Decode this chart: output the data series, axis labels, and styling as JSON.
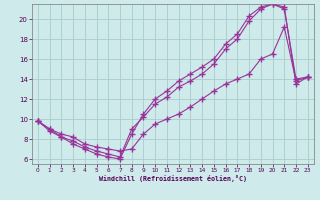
{
  "xlabel": "Windchill (Refroidissement éolien,°C)",
  "bg_color": "#ceeaea",
  "line_color": "#993399",
  "grid_color": "#aacccc",
  "xlim": [
    -0.5,
    23.5
  ],
  "ylim": [
    5.5,
    21.5
  ],
  "xticks": [
    0,
    1,
    2,
    3,
    4,
    5,
    6,
    7,
    8,
    9,
    10,
    11,
    12,
    13,
    14,
    15,
    16,
    17,
    18,
    19,
    20,
    21,
    22,
    23
  ],
  "yticks": [
    6,
    8,
    10,
    12,
    14,
    16,
    18,
    20
  ],
  "line1_x": [
    0,
    1,
    2,
    3,
    4,
    5,
    6,
    7,
    8,
    9,
    10,
    11,
    12,
    13,
    14,
    15,
    16,
    17,
    18,
    19,
    20,
    21,
    22,
    23
  ],
  "line1_y": [
    9.8,
    9.0,
    8.2,
    7.5,
    7.0,
    6.5,
    6.2,
    6.0,
    8.5,
    10.5,
    12.0,
    12.8,
    13.8,
    14.5,
    15.2,
    16.0,
    17.5,
    18.5,
    20.3,
    21.2,
    21.5,
    21.2,
    13.5,
    14.2
  ],
  "line2_x": [
    0,
    1,
    2,
    3,
    4,
    5,
    6,
    7,
    8,
    9,
    10,
    11,
    12,
    13,
    14,
    15,
    16,
    17,
    18,
    19,
    20,
    21,
    22,
    23
  ],
  "line2_y": [
    9.8,
    8.8,
    8.2,
    7.8,
    7.2,
    6.8,
    6.5,
    6.2,
    9.0,
    10.2,
    11.5,
    12.2,
    13.2,
    13.8,
    14.5,
    15.5,
    17.0,
    18.0,
    19.8,
    21.0,
    21.5,
    21.0,
    14.0,
    14.2
  ],
  "line3_x": [
    0,
    1,
    2,
    3,
    4,
    5,
    6,
    7,
    8,
    9,
    10,
    11,
    12,
    13,
    14,
    15,
    16,
    17,
    18,
    19,
    20,
    21,
    22,
    23
  ],
  "line3_y": [
    9.8,
    9.0,
    8.5,
    8.2,
    7.5,
    7.2,
    7.0,
    6.8,
    7.0,
    8.5,
    9.5,
    10.0,
    10.5,
    11.2,
    12.0,
    12.8,
    13.5,
    14.0,
    14.5,
    16.0,
    16.5,
    19.2,
    13.8,
    14.2
  ]
}
